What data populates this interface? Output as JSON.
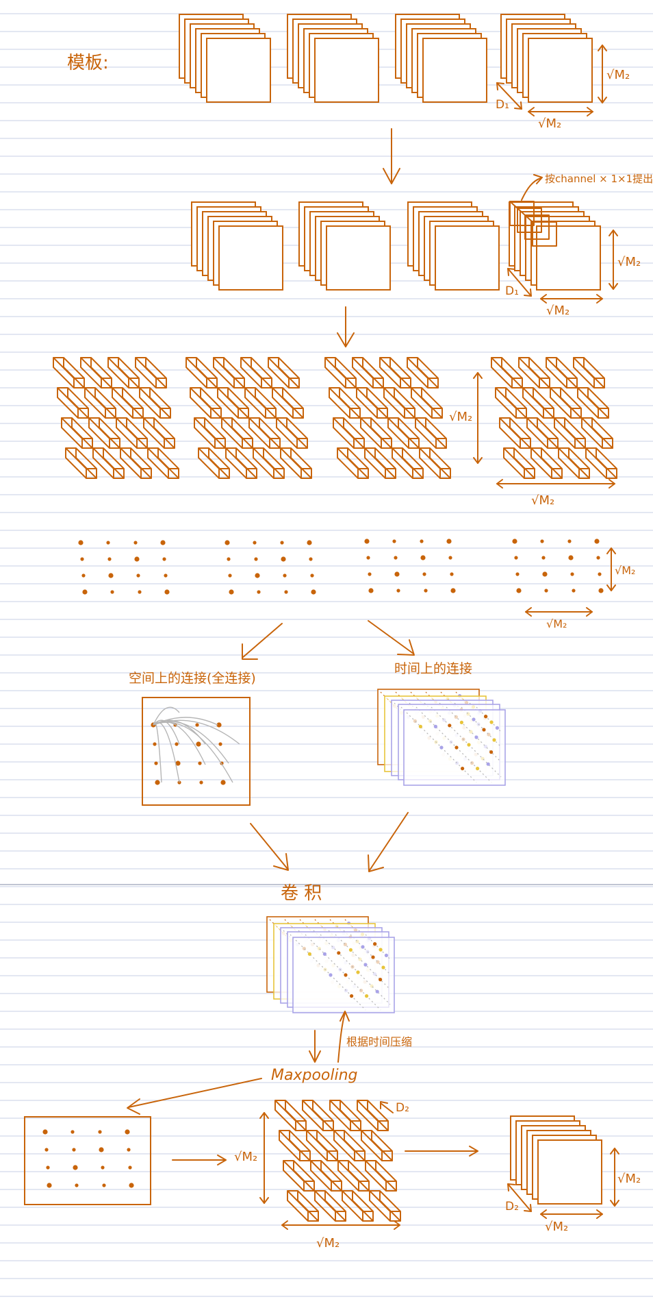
{
  "colors": {
    "ink": "#c8640a",
    "ruled_line": "#c7cfe6",
    "paper": "#ffffff",
    "yellow": "#e8c43a",
    "lavender": "#a9a3e8",
    "grey": "#b5b5b5"
  },
  "labels": {
    "template": "模板:",
    "sqrt_m2": "√M₂",
    "d1": "D₁",
    "d2": "D₂",
    "extract_note": "按channel × 1×1提出",
    "spatial_connection": "空间上的连接(全连接)",
    "temporal_connection": "时间上的连接",
    "convolution": "卷 积",
    "compress_by_time": "根据时间压缩",
    "maxpooling": "Maxpooling"
  }
}
